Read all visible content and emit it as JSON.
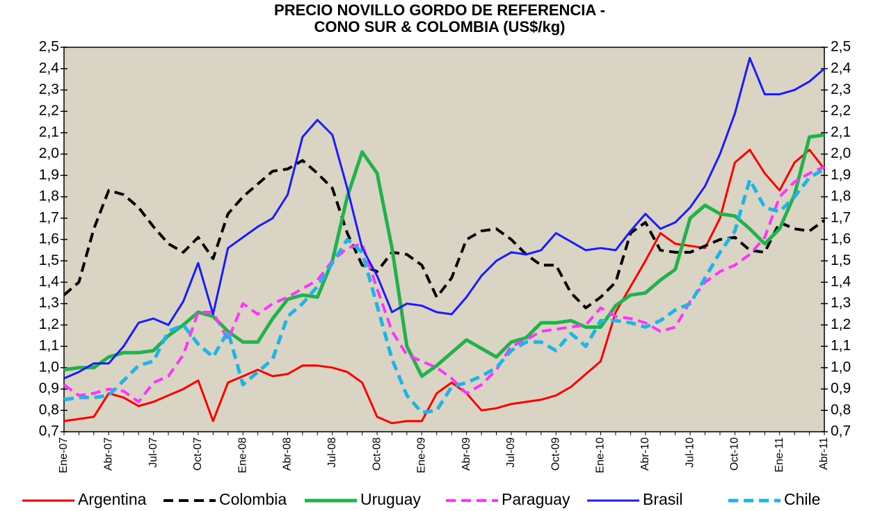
{
  "chart_data": {
    "type": "line",
    "title": "PRECIO NOVILLO GORDO DE REFERENCIA -",
    "subtitle": "CONO SUR & COLOMBIA (US$/kg)",
    "categories": [
      "Ene-07",
      null,
      null,
      "Abr-07",
      null,
      null,
      "Jul-07",
      null,
      null,
      "Oct-07",
      null,
      null,
      "Ene-08",
      null,
      null,
      "Abr-08",
      null,
      null,
      "Jul-08",
      null,
      null,
      "Oct-08",
      null,
      null,
      "Ene-09",
      null,
      null,
      "Abr-09",
      null,
      null,
      "Jul-09",
      null,
      null,
      "Oct-09",
      null,
      null,
      "Ene-10",
      null,
      null,
      "Abr-10",
      null,
      null,
      "Jul-10",
      null,
      null,
      "Oct-10",
      null,
      null,
      "Ene-11",
      null,
      null,
      "Abr-11"
    ],
    "series": [
      {
        "name": "Argentina",
        "color": "#ff0000",
        "dashed": false,
        "values": [
          0.75,
          0.76,
          0.77,
          0.88,
          0.86,
          0.82,
          0.84,
          0.87,
          0.9,
          0.94,
          0.75,
          0.93,
          0.96,
          0.99,
          0.96,
          0.97,
          1.01,
          1.01,
          1.0,
          0.98,
          0.93,
          0.77,
          0.74,
          0.75,
          0.75,
          0.88,
          0.93,
          0.88,
          0.8,
          0.81,
          0.83,
          0.84,
          0.85,
          0.87,
          0.91,
          0.97,
          1.03,
          1.26,
          1.38,
          1.5,
          1.63,
          1.58,
          1.57,
          1.56,
          1.7,
          1.96,
          2.02,
          1.91,
          1.83,
          1.96,
          2.02,
          1.93
        ]
      },
      {
        "name": "Colombia",
        "color": "#000000",
        "dashed": true,
        "values": [
          1.34,
          1.4,
          1.65,
          1.83,
          1.81,
          1.75,
          1.66,
          1.58,
          1.54,
          1.61,
          1.51,
          1.72,
          1.8,
          1.86,
          1.92,
          1.93,
          1.97,
          1.91,
          1.84,
          1.63,
          1.48,
          1.45,
          1.54,
          1.53,
          1.48,
          1.33,
          1.42,
          1.6,
          1.64,
          1.65,
          1.6,
          1.53,
          1.48,
          1.48,
          1.35,
          1.28,
          1.33,
          1.4,
          1.63,
          1.68,
          1.55,
          1.54,
          1.54,
          1.57,
          1.6,
          1.61,
          1.55,
          1.54,
          1.68,
          1.65,
          1.64,
          1.69
        ]
      },
      {
        "name": "Uruguay",
        "color": "#22b14c",
        "dashed": false,
        "values": [
          0.99,
          1.0,
          1.0,
          1.05,
          1.07,
          1.07,
          1.08,
          1.15,
          1.2,
          1.26,
          1.24,
          1.17,
          1.12,
          1.12,
          1.23,
          1.32,
          1.34,
          1.33,
          1.5,
          1.8,
          2.01,
          1.91,
          1.56,
          1.1,
          0.96,
          1.01,
          1.07,
          1.13,
          1.09,
          1.05,
          1.12,
          1.14,
          1.21,
          1.21,
          1.22,
          1.19,
          1.19,
          1.29,
          1.34,
          1.35,
          1.41,
          1.46,
          1.7,
          1.76,
          1.72,
          1.71,
          1.65,
          1.58,
          1.65,
          1.81,
          2.08,
          2.09
        ]
      },
      {
        "name": "Paraguay",
        "color": "#ff33ff",
        "dashed": true,
        "values": [
          0.92,
          0.87,
          0.88,
          0.9,
          0.89,
          0.84,
          0.93,
          0.96,
          1.06,
          1.26,
          1.26,
          1.13,
          1.3,
          1.25,
          1.3,
          1.33,
          1.37,
          1.41,
          1.5,
          1.56,
          1.58,
          1.37,
          1.17,
          1.06,
          1.03,
          1.0,
          0.95,
          0.88,
          0.92,
          0.99,
          1.1,
          1.13,
          1.17,
          1.18,
          1.19,
          1.2,
          1.28,
          1.24,
          1.23,
          1.21,
          1.17,
          1.19,
          1.31,
          1.4,
          1.45,
          1.48,
          1.53,
          1.61,
          1.8,
          1.87,
          1.91,
          1.94
        ]
      },
      {
        "name": "Brasil",
        "color": "#1a1aff",
        "dashed": false,
        "values": [
          0.95,
          0.98,
          1.02,
          1.02,
          1.1,
          1.21,
          1.23,
          1.2,
          1.31,
          1.49,
          1.25,
          1.56,
          1.61,
          1.66,
          1.7,
          1.81,
          2.08,
          2.16,
          2.09,
          1.84,
          1.56,
          1.43,
          1.26,
          1.3,
          1.29,
          1.26,
          1.25,
          1.33,
          1.43,
          1.5,
          1.54,
          1.53,
          1.55,
          1.63,
          1.59,
          1.55,
          1.56,
          1.55,
          1.64,
          1.72,
          1.65,
          1.68,
          1.75,
          1.85,
          2.0,
          2.19,
          2.45,
          2.28,
          2.28,
          2.3,
          2.34,
          2.4
        ]
      },
      {
        "name": "Chile",
        "color": "#1fb4e8",
        "dashed": true,
        "values": [
          0.85,
          0.86,
          0.86,
          0.87,
          0.94,
          1.01,
          1.03,
          1.17,
          1.2,
          1.11,
          1.05,
          1.17,
          0.92,
          0.98,
          1.04,
          1.24,
          1.3,
          1.38,
          1.49,
          1.6,
          1.54,
          1.29,
          1.04,
          0.87,
          0.79,
          0.8,
          0.91,
          0.93,
          0.96,
          1.0,
          1.08,
          1.12,
          1.12,
          1.08,
          1.16,
          1.1,
          1.22,
          1.22,
          1.21,
          1.19,
          1.22,
          1.27,
          1.3,
          1.42,
          1.54,
          1.64,
          1.88,
          1.75,
          1.73,
          1.8,
          1.89,
          1.93
        ]
      }
    ],
    "ylim": [
      0.7,
      2.5
    ],
    "yticks": [
      {
        "value": 0.7,
        "label": "0,7"
      },
      {
        "value": 0.8,
        "label": "0,8"
      },
      {
        "value": 0.9,
        "label": "0,9"
      },
      {
        "value": 1.0,
        "label": "1,0"
      },
      {
        "value": 1.1,
        "label": "1,1"
      },
      {
        "value": 1.2,
        "label": "1,2"
      },
      {
        "value": 1.3,
        "label": "1,3"
      },
      {
        "value": 1.4,
        "label": "1,4"
      },
      {
        "value": 1.5,
        "label": "1,5"
      },
      {
        "value": 1.6,
        "label": "1,6"
      },
      {
        "value": 1.7,
        "label": "1,7"
      },
      {
        "value": 1.8,
        "label": "1,8"
      },
      {
        "value": 1.9,
        "label": "1,9"
      },
      {
        "value": 2.0,
        "label": "2,0"
      },
      {
        "value": 2.1,
        "label": "2,1"
      },
      {
        "value": 2.2,
        "label": "2,2"
      },
      {
        "value": 2.3,
        "label": "2,3"
      },
      {
        "value": 2.4,
        "label": "2,4"
      },
      {
        "value": 2.5,
        "label": "2,5"
      }
    ],
    "y2lim": [
      0.7,
      2.5
    ],
    "y2ticks": [
      {
        "value": 0.7,
        "label": "0,7"
      },
      {
        "value": 0.8,
        "label": "0,8"
      },
      {
        "value": 0.9,
        "label": "0,9"
      },
      {
        "value": 1.0,
        "label": "1,0"
      },
      {
        "value": 1.1,
        "label": "1,1"
      },
      {
        "value": 1.2,
        "label": "1,2"
      },
      {
        "value": 1.3,
        "label": "1,3"
      },
      {
        "value": 1.4,
        "label": "1,4"
      },
      {
        "value": 1.5,
        "label": "1,5"
      },
      {
        "value": 1.6,
        "label": "1,6"
      },
      {
        "value": 1.7,
        "label": "1,7"
      },
      {
        "value": 1.8,
        "label": "1,8"
      },
      {
        "value": 1.9,
        "label": "1,9"
      },
      {
        "value": 2.0,
        "label": "2,0"
      },
      {
        "value": 2.1,
        "label": "2,1"
      },
      {
        "value": 2.2,
        "label": "2,2"
      },
      {
        "value": 2.3,
        "label": "2,3"
      },
      {
        "value": 2.4,
        "label": "2,4"
      },
      {
        "value": 2.5,
        "label": "2,5"
      }
    ],
    "grid": false,
    "legend": "bottom",
    "background": "#d9d4c3"
  }
}
